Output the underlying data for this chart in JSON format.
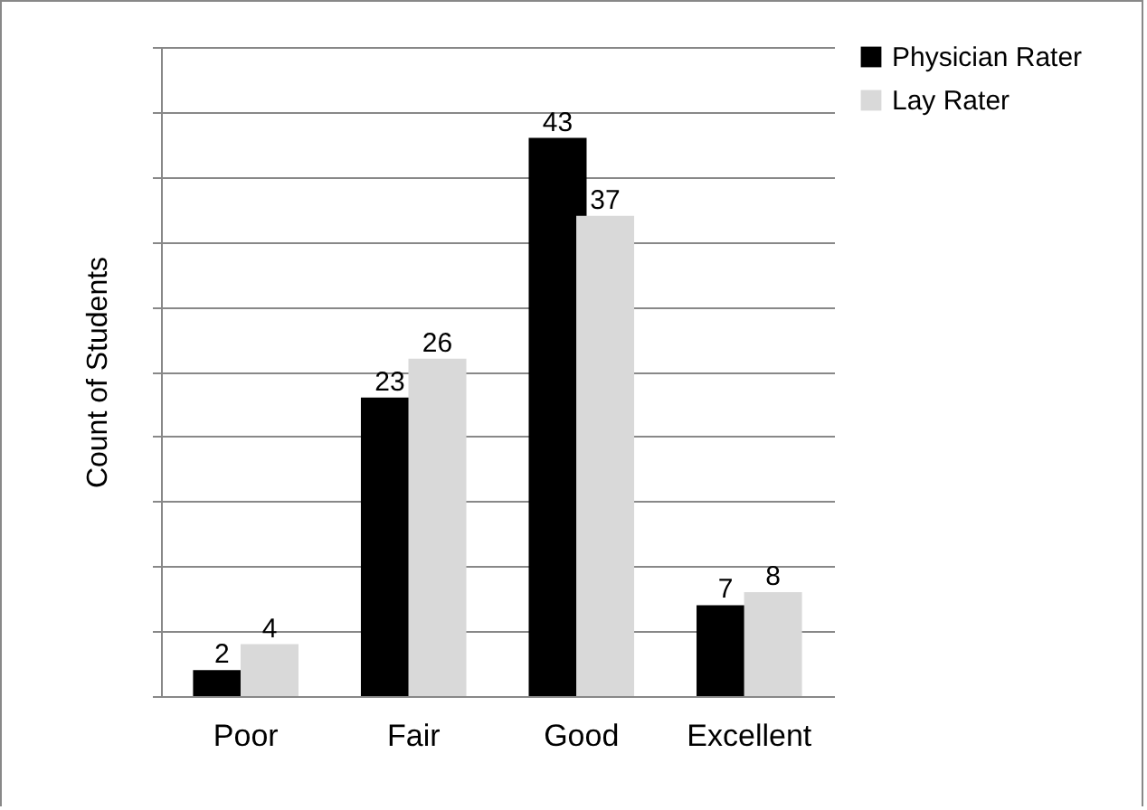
{
  "chart_data": {
    "type": "bar",
    "ylabel": "Count of Students",
    "categories": [
      "Poor",
      "Fair",
      "Good",
      "Excellent"
    ],
    "series": [
      {
        "name": "Physician Rater",
        "color": "#000000",
        "values": [
          2,
          23,
          43,
          7
        ]
      },
      {
        "name": "Lay Rater",
        "color": "#d9d9d9",
        "values": [
          4,
          26,
          37,
          8
        ]
      }
    ],
    "ylim": [
      0,
      50
    ],
    "yticks": [
      {
        "value": 0,
        "label": null
      },
      {
        "value": 5,
        "label": null
      },
      {
        "value": 10,
        "label": null
      },
      {
        "value": 15,
        "label": null
      },
      {
        "value": 20,
        "label": null
      },
      {
        "value": 25,
        "label": null
      },
      {
        "value": 30,
        "label": null
      },
      {
        "value": 35,
        "label": null
      },
      {
        "value": 40,
        "label": null
      },
      {
        "value": 45,
        "label": null
      },
      {
        "value": 50,
        "label": null
      }
    ],
    "tick_labels": "x",
    "grid": "y",
    "legend": "top right",
    "data_labels": true
  }
}
